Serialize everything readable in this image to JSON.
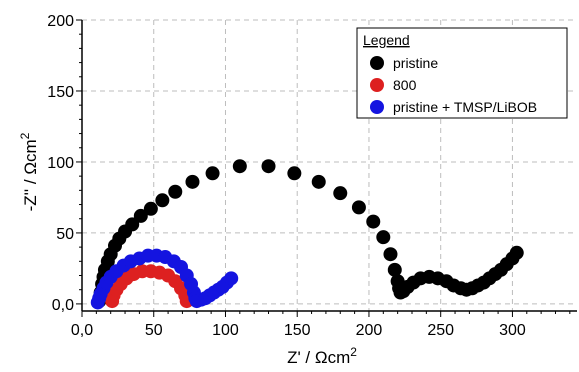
{
  "chart_data": {
    "type": "scatter",
    "xlabel": "Z' / Ωcm",
    "xlabel_sup": "2",
    "ylabel": "-Z'' / Ωcm",
    "ylabel_sup": "2",
    "xlim": [
      0,
      345
    ],
    "ylim": [
      -5,
      200
    ],
    "x_ticks": [
      0,
      50,
      100,
      150,
      200,
      250,
      300
    ],
    "x_tick_labels": [
      "0,0",
      "50",
      "100",
      "150",
      "200",
      "250",
      "300"
    ],
    "y_ticks": [
      0,
      50,
      100,
      150,
      200
    ],
    "y_tick_labels": [
      "0,0",
      "50",
      "100",
      "150",
      "200"
    ],
    "grid": true,
    "legend": {
      "title": "Legend",
      "position": "top-right"
    },
    "series": [
      {
        "name": "pristine",
        "color": "#000000",
        "points": [
          [
            12,
            2
          ],
          [
            13,
            8
          ],
          [
            14,
            14
          ],
          [
            15,
            19
          ],
          [
            16,
            24
          ],
          [
            18,
            30
          ],
          [
            20,
            35
          ],
          [
            23,
            41
          ],
          [
            26,
            46
          ],
          [
            30,
            51
          ],
          [
            35,
            56
          ],
          [
            41,
            62
          ],
          [
            48,
            67
          ],
          [
            56,
            73
          ],
          [
            65,
            79
          ],
          [
            77,
            86
          ],
          [
            91,
            92
          ],
          [
            110,
            97
          ],
          [
            130,
            97
          ],
          [
            148,
            92
          ],
          [
            165,
            86
          ],
          [
            180,
            78
          ],
          [
            193,
            68
          ],
          [
            203,
            58
          ],
          [
            210,
            47
          ],
          [
            215,
            35
          ],
          [
            218,
            24
          ],
          [
            220,
            16
          ],
          [
            221,
            11
          ],
          [
            222,
            8
          ],
          [
            224,
            9
          ],
          [
            227,
            12
          ],
          [
            231,
            15
          ],
          [
            236,
            18
          ],
          [
            242,
            19
          ],
          [
            248,
            18
          ],
          [
            254,
            16
          ],
          [
            259,
            13
          ],
          [
            264,
            11
          ],
          [
            268,
            10
          ],
          [
            272,
            11
          ],
          [
            276,
            13
          ],
          [
            280,
            15
          ],
          [
            284,
            18
          ],
          [
            288,
            21
          ],
          [
            292,
            24
          ],
          [
            296,
            28
          ],
          [
            300,
            32
          ],
          [
            303,
            36
          ]
        ]
      },
      {
        "name": "800",
        "color": "#dd2020",
        "points": [
          [
            21,
            2
          ],
          [
            22,
            6
          ],
          [
            24,
            10
          ],
          [
            27,
            14
          ],
          [
            31,
            18
          ],
          [
            36,
            21
          ],
          [
            42,
            23
          ],
          [
            48,
            23
          ],
          [
            54,
            22
          ],
          [
            60,
            20
          ],
          [
            65,
            16
          ],
          [
            69,
            11
          ],
          [
            72,
            6
          ],
          [
            73,
            2
          ]
        ]
      },
      {
        "name": "pristine + TMSP/LiBOB",
        "color": "#1414e0",
        "points": [
          [
            11,
            1
          ],
          [
            12,
            4
          ],
          [
            13,
            7
          ],
          [
            15,
            11
          ],
          [
            17,
            15
          ],
          [
            20,
            19
          ],
          [
            24,
            23
          ],
          [
            29,
            27
          ],
          [
            34,
            30
          ],
          [
            40,
            32
          ],
          [
            46,
            34
          ],
          [
            52,
            34
          ],
          [
            58,
            33
          ],
          [
            64,
            30
          ],
          [
            69,
            26
          ],
          [
            73,
            20
          ],
          [
            76,
            14
          ],
          [
            78,
            8
          ],
          [
            79,
            4
          ],
          [
            80,
            2
          ],
          [
            83,
            3
          ],
          [
            86,
            4
          ],
          [
            89,
            6
          ],
          [
            92,
            8
          ],
          [
            95,
            10
          ],
          [
            98,
            12
          ],
          [
            101,
            15
          ],
          [
            104,
            18
          ]
        ]
      }
    ]
  }
}
